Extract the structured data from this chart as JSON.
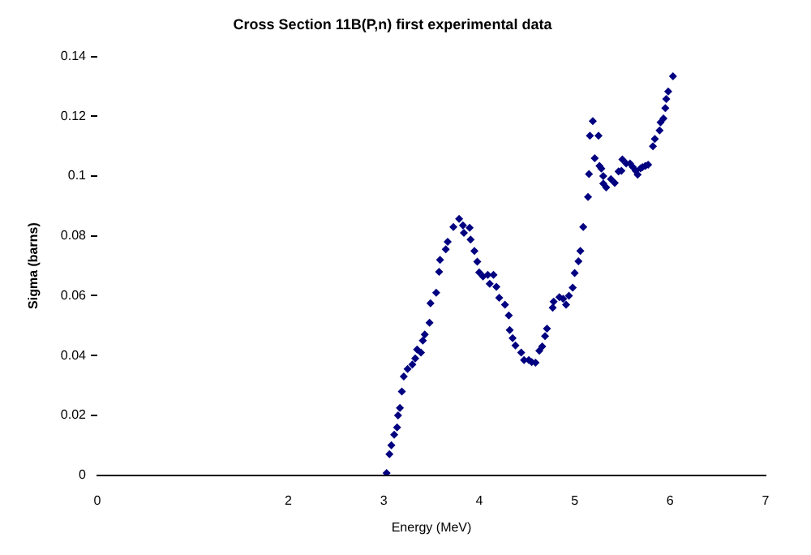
{
  "chart_data": {
    "type": "scatter",
    "title": "Cross Section 11B(P,n) first experimental data",
    "xlabel": "Energy (MeV)",
    "ylabel": "Sigma (barns)",
    "xlim": [
      0,
      7
    ],
    "xticks": [
      0,
      2,
      3,
      4,
      5,
      6,
      7
    ],
    "ylim": [
      0,
      0.14
    ],
    "yticks": [
      0,
      0.02,
      0.04,
      0.06,
      0.08,
      0.1,
      0.12,
      0.14
    ],
    "grid": false,
    "legend": false,
    "marker": "diamond",
    "series": [
      {
        "color": "#000080",
        "x": [
          3.03,
          3.06,
          3.08,
          3.11,
          3.14,
          3.15,
          3.17,
          3.19,
          3.21,
          3.25,
          3.3,
          3.33,
          3.35,
          3.39,
          3.41,
          3.43,
          3.48,
          3.49,
          3.55,
          3.58,
          3.59,
          3.65,
          3.67,
          3.73,
          3.79,
          3.83,
          3.84,
          3.9,
          3.91,
          3.95,
          3.98,
          4.0,
          4.04,
          4.09,
          4.11,
          4.15,
          4.18,
          4.21,
          4.27,
          4.31,
          4.32,
          4.35,
          4.38,
          4.44,
          4.47,
          4.52,
          4.55,
          4.59,
          4.63,
          4.66,
          4.69,
          4.71,
          4.77,
          4.78,
          4.84,
          4.88,
          4.91,
          4.94,
          4.98,
          5.0,
          5.04,
          5.06,
          5.09,
          5.14,
          5.15,
          5.16,
          5.19,
          5.21,
          5.25,
          5.26,
          5.28,
          5.3,
          5.3,
          5.33,
          5.38,
          5.42,
          5.46,
          5.49,
          5.5,
          5.54,
          5.58,
          5.61,
          5.64,
          5.66,
          5.69,
          5.71,
          5.74,
          5.77,
          5.82,
          5.84,
          5.89,
          5.9,
          5.93,
          5.95,
          5.96,
          5.98,
          6.03
        ],
        "values": [
          0.0007,
          0.007,
          0.01,
          0.0135,
          0.016,
          0.02,
          0.0225,
          0.028,
          0.033,
          0.0355,
          0.037,
          0.039,
          0.042,
          0.041,
          0.045,
          0.047,
          0.051,
          0.0575,
          0.061,
          0.068,
          0.072,
          0.0755,
          0.078,
          0.083,
          0.0857,
          0.0835,
          0.081,
          0.0827,
          0.0788,
          0.075,
          0.0714,
          0.0678,
          0.0664,
          0.067,
          0.064,
          0.067,
          0.063,
          0.0593,
          0.057,
          0.0534,
          0.0485,
          0.0458,
          0.0434,
          0.041,
          0.0385,
          0.0385,
          0.0378,
          0.0376,
          0.0416,
          0.043,
          0.0465,
          0.049,
          0.056,
          0.058,
          0.0595,
          0.059,
          0.057,
          0.06,
          0.0627,
          0.0676,
          0.0715,
          0.075,
          0.083,
          0.093,
          0.1007,
          0.1135,
          0.1184,
          0.106,
          0.1135,
          0.1034,
          0.1025,
          0.1,
          0.0975,
          0.0962,
          0.099,
          0.0977,
          0.1016,
          0.1018,
          0.1056,
          0.1042,
          0.1042,
          0.103,
          0.1018,
          0.1005,
          0.1026,
          0.103,
          0.1034,
          0.1038,
          0.11,
          0.1124,
          0.1153,
          0.118,
          0.1193,
          0.1227,
          0.1258,
          0.1283,
          0.1334
        ]
      }
    ]
  }
}
